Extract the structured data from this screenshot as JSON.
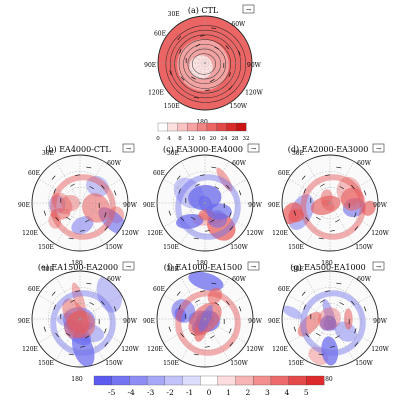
{
  "chart_data": [
    {
      "type": "heatmap",
      "projection": "polar-stereographic",
      "panel": "(a) CTL",
      "lon_labels": [
        "30E",
        "60W",
        "60E",
        "90W",
        "90E",
        "120W",
        "120E",
        "150W",
        "150E",
        "180"
      ],
      "colorbar": {
        "ticks": [
          0,
          4,
          8,
          12,
          16,
          20,
          24,
          28,
          32
        ],
        "colors": [
          "#ffffff",
          "#fde0e0",
          "#fbc2c2",
          "#f7a3a3",
          "#f28484",
          "#ec6666",
          "#e34848",
          "#d82c2c",
          "#c81414"
        ]
      },
      "reference_vector_label": "→",
      "pattern": "positive-ring"
    },
    {
      "type": "heatmap",
      "projection": "polar-stereographic",
      "panel": "(b) EA4000-CTL",
      "lon_labels": [
        "30E",
        "60W",
        "60E",
        "90W",
        "90E",
        "120W",
        "120E",
        "150W",
        "150E",
        "180"
      ],
      "reference_vector_label": "→",
      "pattern": "mixed-diverging"
    },
    {
      "type": "heatmap",
      "projection": "polar-stereographic",
      "panel": "(c) EA3000-EA4000",
      "lon_labels": [
        "30E",
        "60W",
        "60E",
        "90W",
        "90E",
        "120W",
        "120E",
        "150W",
        "150E",
        "180"
      ],
      "reference_vector_label": "→",
      "pattern": "mixed-diverging"
    },
    {
      "type": "heatmap",
      "projection": "polar-stereographic",
      "panel": "(d) EA2000-EA3000",
      "lon_labels": [
        "30E",
        "60W",
        "60E",
        "90W",
        "90E",
        "120W",
        "120E",
        "150W",
        "150E",
        "180"
      ],
      "reference_vector_label": "→",
      "pattern": "mixed-diverging"
    },
    {
      "type": "heatmap",
      "projection": "polar-stereographic",
      "panel": "(e) EA1500-EA2000",
      "lon_labels": [
        "30E",
        "60W",
        "60E",
        "90W",
        "90E",
        "120W",
        "120E",
        "150W",
        "150E",
        "180"
      ],
      "reference_vector_label": "→",
      "pattern": "mixed-diverging"
    },
    {
      "type": "heatmap",
      "projection": "polar-stereographic",
      "panel": "(f) EA1000-EA1500",
      "lon_labels": [
        "30E",
        "60W",
        "60E",
        "90W",
        "90E",
        "120W",
        "120E",
        "150W",
        "150E",
        "180"
      ],
      "reference_vector_label": "→",
      "pattern": "mixed-diverging"
    },
    {
      "type": "heatmap",
      "projection": "polar-stereographic",
      "panel": "(g) EA500-EA1000",
      "lon_labels": [
        "30E",
        "60W",
        "60E",
        "90W",
        "90E",
        "120W",
        "120E",
        "150W",
        "150E",
        "180"
      ],
      "reference_vector_label": "→",
      "pattern": "mixed-diverging"
    }
  ],
  "diff_colorbar": {
    "ticks": [
      "-5",
      "-4",
      "-3",
      "-2",
      "-1",
      "0",
      "1",
      "2",
      "3",
      "4",
      "5"
    ],
    "colors": [
      "#5b5bf0",
      "#7474f3",
      "#8d8df5",
      "#a7a7f7",
      "#c2c2fa",
      "#dcdcfc",
      "#ffffff",
      "#fcdcdc",
      "#f7b4b4",
      "#f28e8e",
      "#ec6a6a",
      "#e54a4a",
      "#dd2a2a"
    ]
  }
}
